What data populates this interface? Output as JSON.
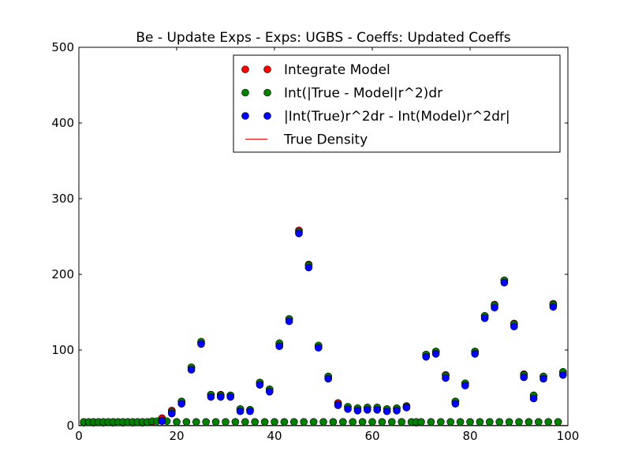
{
  "chart_data": {
    "type": "scatter",
    "title": "Be - Update Exps - Exps: UGBS - Coeffs: Updated Coeffs",
    "xlabel": "",
    "ylabel": "",
    "xlim": [
      0,
      100
    ],
    "ylim": [
      0,
      500
    ],
    "x_ticks": [
      0,
      20,
      40,
      60,
      80,
      100
    ],
    "y_ticks": [
      0,
      100,
      200,
      300,
      400,
      500
    ],
    "grid": false,
    "legend_position": "top-right",
    "series": [
      {
        "name": "Integrate Model",
        "color": "#ff0000",
        "marker": "circle",
        "points": [
          [
            1,
            4
          ],
          [
            3,
            4
          ],
          [
            5,
            4
          ],
          [
            7,
            4
          ],
          [
            9,
            4
          ],
          [
            11,
            4
          ],
          [
            13,
            4
          ],
          [
            15,
            5
          ],
          [
            17,
            10
          ],
          [
            19,
            20
          ],
          [
            21,
            32
          ],
          [
            23,
            77
          ],
          [
            25,
            110
          ],
          [
            27,
            41
          ],
          [
            29,
            41
          ],
          [
            31,
            40
          ],
          [
            33,
            22
          ],
          [
            35,
            21
          ],
          [
            37,
            57
          ],
          [
            39,
            48
          ],
          [
            41,
            108
          ],
          [
            43,
            141
          ],
          [
            45,
            258
          ],
          [
            47,
            213
          ],
          [
            49,
            105
          ],
          [
            51,
            65
          ],
          [
            53,
            30
          ],
          [
            55,
            25
          ],
          [
            57,
            23
          ],
          [
            59,
            24
          ],
          [
            61,
            24
          ],
          [
            63,
            22
          ],
          [
            65,
            23
          ],
          [
            67,
            26
          ],
          [
            69,
            4
          ],
          [
            71,
            94
          ],
          [
            73,
            98
          ],
          [
            75,
            67
          ],
          [
            77,
            32
          ],
          [
            79,
            56
          ],
          [
            81,
            98
          ],
          [
            83,
            145
          ],
          [
            85,
            160
          ],
          [
            87,
            192
          ],
          [
            89,
            135
          ],
          [
            91,
            68
          ],
          [
            93,
            40
          ],
          [
            95,
            65
          ],
          [
            97,
            161
          ],
          [
            99,
            71
          ]
        ]
      },
      {
        "name": "Int(|True - Model|r^2)dr",
        "color": "#008000",
        "marker": "circle",
        "points": [
          [
            1,
            5
          ],
          [
            2,
            5
          ],
          [
            3,
            5
          ],
          [
            4,
            5
          ],
          [
            5,
            5
          ],
          [
            6,
            5
          ],
          [
            7,
            5
          ],
          [
            8,
            5
          ],
          [
            9,
            5
          ],
          [
            10,
            5
          ],
          [
            11,
            5
          ],
          [
            12,
            5
          ],
          [
            13,
            5
          ],
          [
            14,
            5
          ],
          [
            15,
            6
          ],
          [
            16,
            6
          ],
          [
            17,
            7
          ],
          [
            18,
            6
          ],
          [
            19,
            18
          ],
          [
            20,
            5
          ],
          [
            21,
            32
          ],
          [
            23,
            77
          ],
          [
            25,
            111
          ],
          [
            27,
            41
          ],
          [
            29,
            40
          ],
          [
            31,
            40
          ],
          [
            33,
            22
          ],
          [
            35,
            21
          ],
          [
            37,
            57
          ],
          [
            39,
            48
          ],
          [
            41,
            109
          ],
          [
            43,
            141
          ],
          [
            45,
            256
          ],
          [
            47,
            212
          ],
          [
            49,
            106
          ],
          [
            51,
            65
          ],
          [
            53,
            28
          ],
          [
            55,
            25
          ],
          [
            57,
            23
          ],
          [
            59,
            24
          ],
          [
            61,
            24
          ],
          [
            63,
            22
          ],
          [
            65,
            23
          ],
          [
            67,
            25
          ],
          [
            71,
            94
          ],
          [
            73,
            98
          ],
          [
            75,
            66
          ],
          [
            77,
            32
          ],
          [
            79,
            56
          ],
          [
            81,
            98
          ],
          [
            83,
            145
          ],
          [
            85,
            159
          ],
          [
            87,
            192
          ],
          [
            89,
            134
          ],
          [
            91,
            67
          ],
          [
            93,
            40
          ],
          [
            95,
            65
          ],
          [
            97,
            160
          ],
          [
            99,
            71
          ],
          [
            22,
            5
          ],
          [
            24,
            5
          ],
          [
            26,
            5
          ],
          [
            28,
            5
          ],
          [
            30,
            5
          ],
          [
            32,
            5
          ],
          [
            34,
            5
          ],
          [
            36,
            5
          ],
          [
            38,
            5
          ],
          [
            40,
            5
          ],
          [
            42,
            5
          ],
          [
            44,
            5
          ],
          [
            46,
            5
          ],
          [
            48,
            5
          ],
          [
            50,
            5
          ],
          [
            52,
            5
          ],
          [
            54,
            5
          ],
          [
            56,
            5
          ],
          [
            58,
            5
          ],
          [
            60,
            5
          ],
          [
            62,
            5
          ],
          [
            64,
            5
          ],
          [
            66,
            5
          ],
          [
            68,
            5
          ],
          [
            69,
            5
          ],
          [
            70,
            5
          ],
          [
            72,
            5
          ],
          [
            74,
            5
          ],
          [
            76,
            5
          ],
          [
            78,
            5
          ],
          [
            80,
            5
          ],
          [
            82,
            5
          ],
          [
            84,
            5
          ],
          [
            86,
            5
          ],
          [
            88,
            5
          ],
          [
            90,
            5
          ],
          [
            92,
            5
          ],
          [
            94,
            5
          ],
          [
            96,
            5
          ],
          [
            98,
            5
          ]
        ]
      },
      {
        "name": "|Int(True)r^2dr - Int(Model)r^2dr|",
        "color": "#0000ff",
        "marker": "circle",
        "points": [
          [
            17,
            6
          ],
          [
            19,
            16
          ],
          [
            21,
            29
          ],
          [
            23,
            74
          ],
          [
            25,
            108
          ],
          [
            27,
            38
          ],
          [
            29,
            38
          ],
          [
            31,
            38
          ],
          [
            33,
            19
          ],
          [
            35,
            19
          ],
          [
            37,
            54
          ],
          [
            39,
            45
          ],
          [
            41,
            105
          ],
          [
            43,
            138
          ],
          [
            45,
            254
          ],
          [
            47,
            209
          ],
          [
            49,
            103
          ],
          [
            51,
            62
          ],
          [
            53,
            27
          ],
          [
            55,
            22
          ],
          [
            57,
            20
          ],
          [
            59,
            21
          ],
          [
            61,
            21
          ],
          [
            63,
            19
          ],
          [
            65,
            20
          ],
          [
            67,
            24
          ],
          [
            71,
            91
          ],
          [
            73,
            95
          ],
          [
            75,
            63
          ],
          [
            77,
            29
          ],
          [
            79,
            53
          ],
          [
            81,
            95
          ],
          [
            83,
            142
          ],
          [
            85,
            156
          ],
          [
            87,
            189
          ],
          [
            89,
            131
          ],
          [
            91,
            64
          ],
          [
            93,
            36
          ],
          [
            95,
            62
          ],
          [
            97,
            157
          ],
          [
            99,
            67
          ]
        ]
      },
      {
        "name": "True Density",
        "color": "#ff0000",
        "marker": "line",
        "points": [
          [
            0,
            0.5
          ],
          [
            100,
            0.5
          ]
        ]
      }
    ]
  }
}
